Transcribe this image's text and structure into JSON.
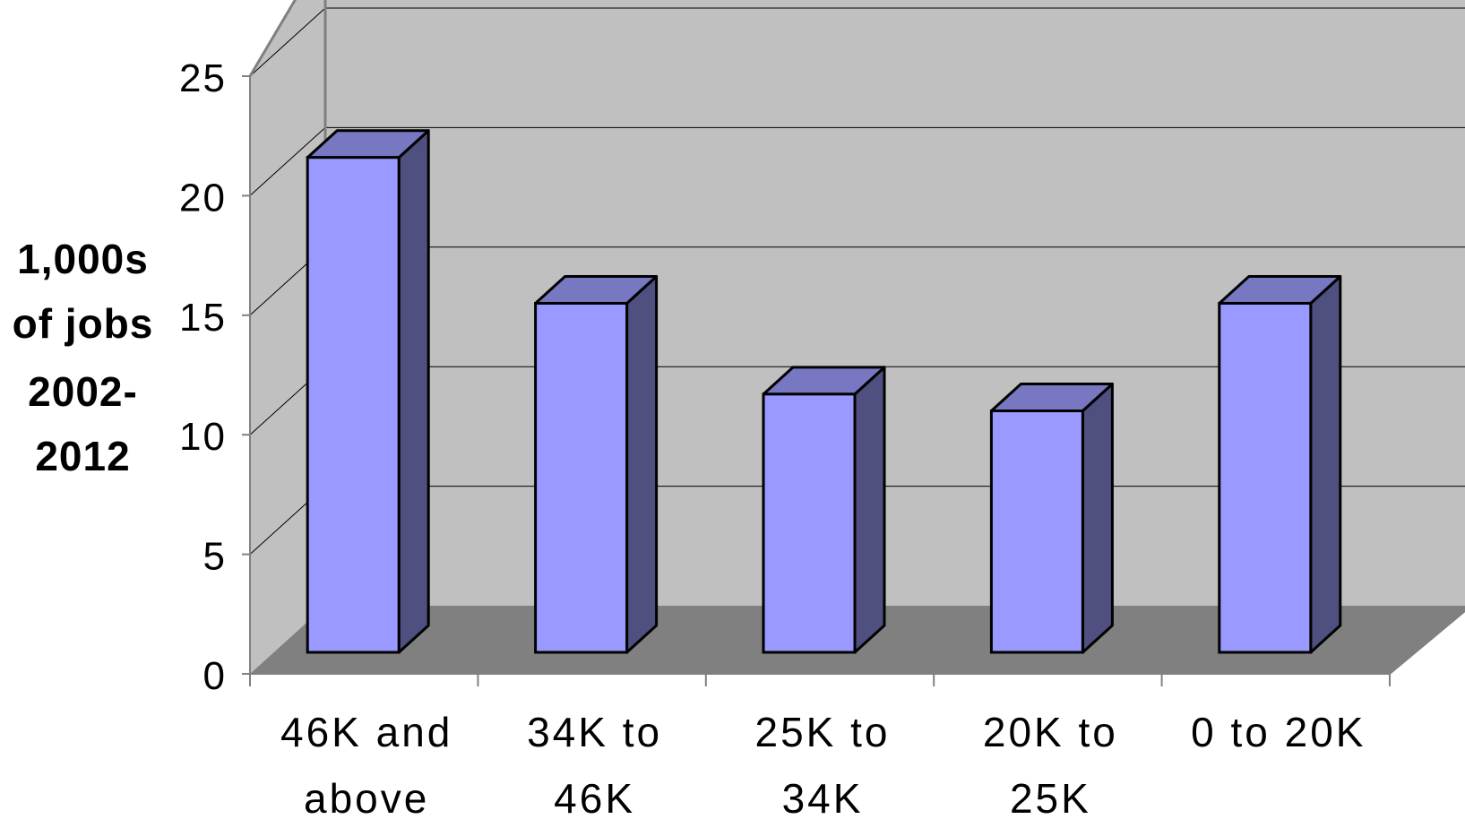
{
  "chart_data": {
    "type": "bar",
    "style": "3d-column",
    "categories": [
      [
        "46K and",
        "above"
      ],
      [
        "34K to",
        "46K"
      ],
      [
        "25K to",
        "34K"
      ],
      [
        "20K to",
        "25K"
      ],
      [
        "0 to 20K"
      ]
    ],
    "values": [
      21.6,
      15.5,
      11.7,
      11.0,
      15.5
    ],
    "ylabel_lines": [
      "1,000s",
      "of jobs",
      "2002-",
      "2012"
    ],
    "yticks": [
      "0",
      "5",
      "10",
      "15",
      "20",
      "25"
    ],
    "ylim": [
      0,
      25
    ],
    "grid": true,
    "legend": "none",
    "colors": {
      "bar_front": "#9999ff",
      "bar_top": "#7777c2",
      "bar_side": "#4f4f80",
      "wall": "#c0c0c0",
      "floor": "#808080",
      "gridline": "#000000"
    }
  }
}
